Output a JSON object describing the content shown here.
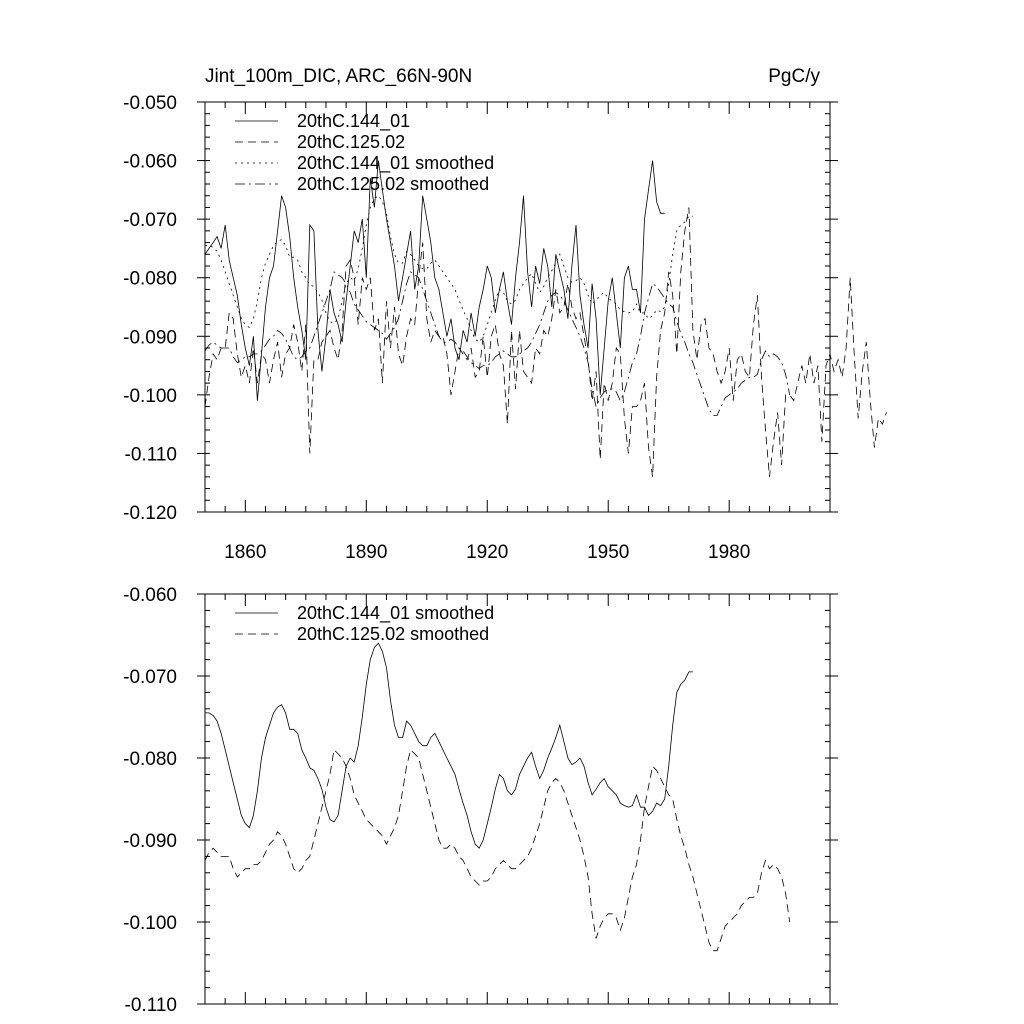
{
  "chart_data": [
    {
      "type": "line",
      "title": "Jint_100m_DIC, ARC_66N-90N",
      "units": "PgC/y",
      "xlim": [
        1850,
        2005
      ],
      "ylim": [
        -0.12,
        -0.05
      ],
      "xticks": [
        1860,
        1890,
        1920,
        1950,
        1980
      ],
      "xtick_labels": [
        "1860",
        "1890",
        "1920",
        "1950",
        "1980"
      ],
      "yticks": [
        -0.05,
        -0.06,
        -0.07,
        -0.08,
        -0.09,
        -0.1,
        -0.11,
        -0.12
      ],
      "ytick_labels": [
        "-0.050",
        "-0.060",
        "-0.070",
        "-0.080",
        "-0.090",
        "-0.100",
        "-0.110",
        "-0.120"
      ],
      "grid": false,
      "legend_position": "top-left",
      "series": [
        {
          "name": "20thC.144_01",
          "dash": "solid",
          "x_start": 1850,
          "values": [
            -0.076,
            -0.075,
            -0.074,
            -0.073,
            -0.075,
            -0.071,
            -0.077,
            -0.08,
            -0.083,
            -0.088,
            -0.092,
            -0.095,
            -0.09,
            -0.101,
            -0.093,
            -0.085,
            -0.08,
            -0.078,
            -0.072,
            -0.066,
            -0.068,
            -0.073,
            -0.08,
            -0.085,
            -0.089,
            -0.094,
            -0.071,
            -0.072,
            -0.089,
            -0.096,
            -0.09,
            -0.082,
            -0.086,
            -0.088,
            -0.091,
            -0.084,
            -0.078,
            -0.072,
            -0.074,
            -0.07,
            -0.08,
            -0.063,
            -0.068,
            -0.06,
            -0.065,
            -0.07,
            -0.074,
            -0.078,
            -0.084,
            -0.08,
            -0.076,
            -0.072,
            -0.082,
            -0.078,
            -0.066,
            -0.07,
            -0.074,
            -0.08,
            -0.082,
            -0.086,
            -0.09,
            -0.087,
            -0.092,
            -0.094,
            -0.089,
            -0.091,
            -0.086,
            -0.09,
            -0.085,
            -0.082,
            -0.078,
            -0.08,
            -0.086,
            -0.082,
            -0.079,
            -0.084,
            -0.088,
            -0.08,
            -0.074,
            -0.066,
            -0.079,
            -0.085,
            -0.078,
            -0.081,
            -0.075,
            -0.078,
            -0.085,
            -0.076,
            -0.079,
            -0.082,
            -0.087,
            -0.078,
            -0.071,
            -0.083,
            -0.088,
            -0.092,
            -0.081,
            -0.087,
            -0.1,
            -0.092,
            -0.084,
            -0.08,
            -0.086,
            -0.092,
            -0.08,
            -0.078,
            -0.082,
            -0.082,
            -0.086,
            -0.07,
            -0.065,
            -0.06,
            -0.067,
            -0.069,
            -0.069
          ]
        },
        {
          "name": "20thC.125.02",
          "dash": "dashed",
          "x_start": 1850,
          "values": [
            -0.102,
            -0.097,
            -0.093,
            -0.094,
            -0.092,
            -0.092,
            -0.086,
            -0.087,
            -0.093,
            -0.097,
            -0.095,
            -0.098,
            -0.092,
            -0.098,
            -0.093,
            -0.094,
            -0.098,
            -0.094,
            -0.091,
            -0.097,
            -0.093,
            -0.092,
            -0.088,
            -0.091,
            -0.096,
            -0.088,
            -0.11,
            -0.094,
            -0.094,
            -0.091,
            -0.09,
            -0.089,
            -0.092,
            -0.094,
            -0.089,
            -0.078,
            -0.077,
            -0.08,
            -0.088,
            -0.08,
            -0.082,
            -0.08,
            -0.089,
            -0.087,
            -0.098,
            -0.084,
            -0.092,
            -0.085,
            -0.093,
            -0.095,
            -0.09,
            -0.087,
            -0.088,
            -0.08,
            -0.074,
            -0.087,
            -0.091,
            -0.089,
            -0.09,
            -0.09,
            -0.093,
            -0.1,
            -0.096,
            -0.092,
            -0.093,
            -0.094,
            -0.092,
            -0.097,
            -0.096,
            -0.09,
            -0.097,
            -0.09,
            -0.088,
            -0.093,
            -0.095,
            -0.105,
            -0.089,
            -0.099,
            -0.089,
            -0.096,
            -0.097,
            -0.098,
            -0.092,
            -0.093,
            -0.089,
            -0.09,
            -0.087,
            -0.082,
            -0.086,
            -0.085,
            -0.081,
            -0.085,
            -0.087,
            -0.086,
            -0.09,
            -0.094,
            -0.101,
            -0.096,
            -0.111,
            -0.098,
            -0.101,
            -0.098,
            -0.092,
            -0.093,
            -0.104,
            -0.11,
            -0.102,
            -0.102,
            -0.101,
            -0.098,
            -0.109,
            -0.114,
            -0.097,
            -0.089,
            -0.086,
            -0.079,
            -0.083,
            -0.093,
            -0.079,
            -0.072,
            -0.068,
            -0.089,
            -0.094,
            -0.088,
            -0.087,
            -0.092,
            -0.093,
            -0.096,
            -0.098,
            -0.096,
            -0.092,
            -0.101,
            -0.094,
            -0.093,
            -0.096,
            -0.097,
            -0.088,
            -0.083,
            -0.097,
            -0.106,
            -0.114,
            -0.108,
            -0.103,
            -0.112,
            -0.1,
            -0.1,
            -0.101,
            -0.098,
            -0.095,
            -0.098,
            -0.093,
            -0.098,
            -0.095,
            -0.108,
            -0.095,
            -0.093,
            -0.096,
            -0.094,
            -0.097,
            -0.092,
            -0.08,
            -0.093,
            -0.104,
            -0.096,
            -0.091,
            -0.101,
            -0.109,
            -0.104,
            -0.105,
            -0.103
          ]
        },
        {
          "name": "20thC.144_01 smoothed",
          "dash": "dotted",
          "x_start": 1850,
          "values": [
            -0.0745,
            -0.0745,
            -0.0748,
            -0.0755,
            -0.077,
            -0.079,
            -0.081,
            -0.083,
            -0.085,
            -0.087,
            -0.088,
            -0.0885,
            -0.087,
            -0.084,
            -0.08,
            -0.0775,
            -0.076,
            -0.0745,
            -0.0738,
            -0.0735,
            -0.0745,
            -0.0765,
            -0.0765,
            -0.077,
            -0.079,
            -0.08,
            -0.0812,
            -0.0815,
            -0.0825,
            -0.0838,
            -0.086,
            -0.0875,
            -0.0878,
            -0.087,
            -0.084,
            -0.081,
            -0.08,
            -0.0805,
            -0.0785,
            -0.075,
            -0.071,
            -0.068,
            -0.0665,
            -0.066,
            -0.067,
            -0.069,
            -0.073,
            -0.076,
            -0.0775,
            -0.0775,
            -0.0755,
            -0.076,
            -0.077,
            -0.078,
            -0.0785,
            -0.0785,
            -0.0775,
            -0.077,
            -0.078,
            -0.079,
            -0.08,
            -0.081,
            -0.082,
            -0.0838,
            -0.0855,
            -0.087,
            -0.089,
            -0.0905,
            -0.091,
            -0.09,
            -0.088,
            -0.086,
            -0.0838,
            -0.082,
            -0.0825,
            -0.084,
            -0.0845,
            -0.0838,
            -0.082,
            -0.081,
            -0.08,
            -0.0793,
            -0.081,
            -0.0825,
            -0.0815,
            -0.08,
            -0.0788,
            -0.0775,
            -0.076,
            -0.078,
            -0.08,
            -0.0808,
            -0.0805,
            -0.08,
            -0.081,
            -0.083,
            -0.0845,
            -0.0838,
            -0.083,
            -0.0825,
            -0.0835,
            -0.084,
            -0.0845,
            -0.0855,
            -0.0858,
            -0.086,
            -0.0858,
            -0.0845,
            -0.086,
            -0.086,
            -0.087,
            -0.0865,
            -0.0855,
            -0.0858,
            -0.085,
            -0.081,
            -0.076,
            -0.072,
            -0.071,
            -0.0705,
            -0.0695,
            -0.0695
          ]
        },
        {
          "name": "20thC.125.02 smoothed",
          "dash": "dashdot",
          "x_start": 1850,
          "values": [
            -0.0925,
            -0.0915,
            -0.091,
            -0.0915,
            -0.092,
            -0.092,
            -0.092,
            -0.0935,
            -0.0945,
            -0.094,
            -0.0935,
            -0.0935,
            -0.093,
            -0.093,
            -0.0925,
            -0.0915,
            -0.0905,
            -0.09,
            -0.089,
            -0.0895,
            -0.0905,
            -0.092,
            -0.0935,
            -0.094,
            -0.0935,
            -0.0925,
            -0.092,
            -0.09,
            -0.088,
            -0.086,
            -0.084,
            -0.082,
            -0.079,
            -0.0795,
            -0.08,
            -0.081,
            -0.0825,
            -0.0845,
            -0.0855,
            -0.0865,
            -0.0875,
            -0.088,
            -0.0885,
            -0.089,
            -0.0895,
            -0.0905,
            -0.0895,
            -0.0885,
            -0.087,
            -0.084,
            -0.081,
            -0.079,
            -0.0795,
            -0.08,
            -0.082,
            -0.084,
            -0.086,
            -0.088,
            -0.09,
            -0.091,
            -0.091,
            -0.0905,
            -0.091,
            -0.092,
            -0.0925,
            -0.0935,
            -0.0945,
            -0.095,
            -0.0955,
            -0.095,
            -0.095,
            -0.0945,
            -0.0935,
            -0.093,
            -0.0925,
            -0.093,
            -0.0935,
            -0.0935,
            -0.093,
            -0.0925,
            -0.092,
            -0.091,
            -0.0895,
            -0.088,
            -0.086,
            -0.084,
            -0.083,
            -0.0825,
            -0.083,
            -0.084,
            -0.0855,
            -0.087,
            -0.0885,
            -0.09,
            -0.092,
            -0.0945,
            -0.099,
            -0.102,
            -0.1005,
            -0.0995,
            -0.099,
            -0.099,
            -0.0995,
            -0.101,
            -0.0995,
            -0.097,
            -0.0945,
            -0.093,
            -0.09,
            -0.086,
            -0.0835,
            -0.081,
            -0.0815,
            -0.0825,
            -0.0835,
            -0.0845,
            -0.085,
            -0.0875,
            -0.0895,
            -0.091,
            -0.093,
            -0.0945,
            -0.0965,
            -0.0985,
            -0.1005,
            -0.1025,
            -0.1035,
            -0.1035,
            -0.102,
            -0.1005,
            -0.1,
            -0.0995,
            -0.099,
            -0.098,
            -0.0975,
            -0.097,
            -0.097,
            -0.0965,
            -0.094,
            -0.0925,
            -0.0935,
            -0.093,
            -0.0935,
            -0.0945,
            -0.0965,
            -0.1
          ]
        }
      ]
    },
    {
      "type": "line",
      "xlim": [
        1850,
        2005
      ],
      "ylim": [
        -0.11,
        -0.06
      ],
      "xticks": [
        1860,
        1890,
        1920,
        1950,
        1980
      ],
      "yticks": [
        -0.06,
        -0.07,
        -0.08,
        -0.09,
        -0.1,
        -0.11
      ],
      "ytick_labels": [
        "-0.060",
        "-0.070",
        "-0.080",
        "-0.090",
        "-0.100",
        "-0.110"
      ],
      "grid": false,
      "legend_position": "top-left",
      "series": [
        {
          "name": "20thC.144_01 smoothed",
          "dash": "solid",
          "ref": 2
        },
        {
          "name": "20thC.125.02 smoothed",
          "dash": "dashed",
          "ref": 3
        }
      ]
    }
  ]
}
